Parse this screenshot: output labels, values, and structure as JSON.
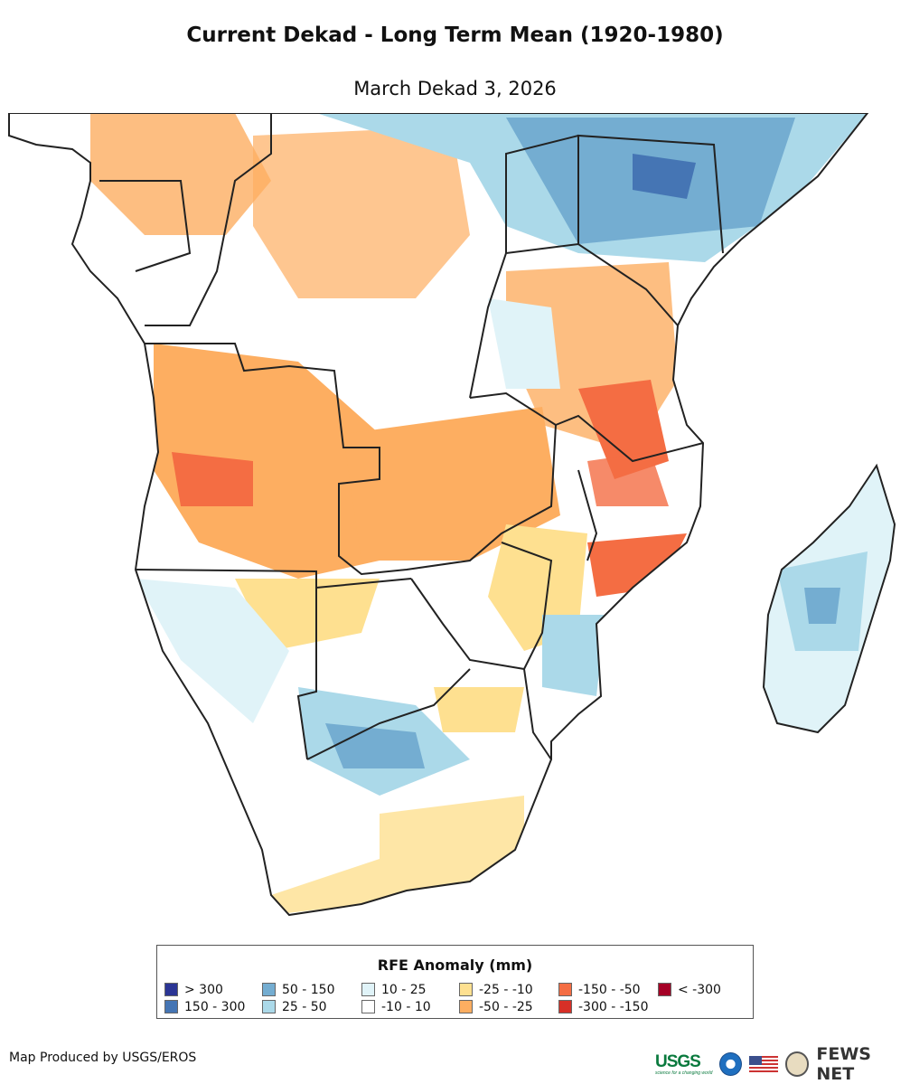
{
  "header": {
    "title": "Current Dekad - Long Term Mean (1920-1980)",
    "subtitle": "March Dekad 3, 2026"
  },
  "legend": {
    "title": "RFE Anomaly (mm)",
    "items": [
      {
        "label": "> 300",
        "color": "#2b3595"
      },
      {
        "label": "150 - 300",
        "color": "#4575b4"
      },
      {
        "label": "50 - 150",
        "color": "#74add1"
      },
      {
        "label": "25 - 50",
        "color": "#abd9e9"
      },
      {
        "label": "10 - 25",
        "color": "#e0f3f8"
      },
      {
        "label": "-10 - 10",
        "color": "#ffffff"
      },
      {
        "label": "-25 - -10",
        "color": "#fee090"
      },
      {
        "label": "-50 - -25",
        "color": "#fdae61"
      },
      {
        "label": "-150 - -50",
        "color": "#f46d43"
      },
      {
        "label": "-300 - -150",
        "color": "#d73027"
      },
      {
        "label": "< -300",
        "color": "#a50026"
      }
    ]
  },
  "footer": {
    "credit": "Map Produced by USGS/EROS",
    "usgs_logo": "USGS",
    "usgs_tagline": "science for a changing world",
    "fews_logo": "FEWS NET"
  }
}
